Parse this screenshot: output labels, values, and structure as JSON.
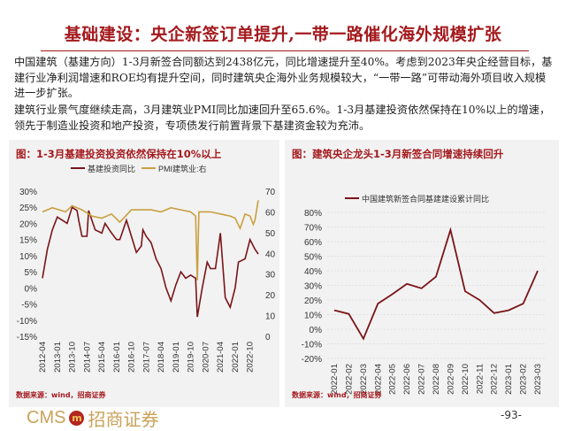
{
  "slide": {
    "title": "基础建设：央企新签订单提升,一带一路催化海外规模扩张",
    "paragraph1": "中国建筑（基建方向）1-3月新签合同额达到2438亿元，同比增速提升至40%。考虑到2023年央企经营目标，基建行业净利润增速和ROE均有提升空间，同时建筑央企海外业务规模较大，“一带一路”可带动海外项目收入规模进一步扩张。",
    "paragraph2": "建筑行业景气度继续走高，3月建筑业PMI同比加速回升至65.6%。1-3月基建投资依然保持在10%以上的增速，领先于制造业投资和地产投资，专项债发行前置背景下基建资金较为充沛。",
    "page_number": "-93-",
    "logo_text": "CMS",
    "logo_cn": "招商证券",
    "accent_color": "#a4191d"
  },
  "chart_data": [
    {
      "type": "line",
      "title": "图：1-3月基建投资投资依然保持在10%以上",
      "source": "数据来源：wind，招商证券",
      "legend_position": "top",
      "grid": false,
      "x_ticks": [
        "2012-04",
        "2013-01",
        "2013-10",
        "2014-07",
        "2015-04",
        "2016-01",
        "2016-10",
        "2017-07",
        "2018-04",
        "2019-01",
        "2019-10",
        "2020-07",
        "2021-04",
        "2022-01",
        "2022-10"
      ],
      "y_left": {
        "ticks": [
          "30%",
          "25%",
          "20%",
          "15%",
          "10%",
          "5%",
          "0%",
          "-5%",
          "-10%",
          "-15%"
        ],
        "range": [
          -15,
          30
        ]
      },
      "y_right": {
        "ticks": [
          "70",
          "60",
          "50",
          "40",
          "30",
          "20",
          "10",
          "0"
        ],
        "range": [
          0,
          70
        ]
      },
      "series": [
        {
          "name": "基建投资同比",
          "axis": "left",
          "color": "#7a1418",
          "points": [
            [
              "2012-04",
              3
            ],
            [
              "2012-07",
              12
            ],
            [
              "2012-10",
              18
            ],
            [
              "2013-01",
              22
            ],
            [
              "2013-04",
              21
            ],
            [
              "2013-07",
              20
            ],
            [
              "2013-10",
              25
            ],
            [
              "2014-01",
              24
            ],
            [
              "2014-02",
              21
            ],
            [
              "2014-04",
              16
            ],
            [
              "2014-07",
              16
            ],
            [
              "2014-08",
              24
            ],
            [
              "2014-12",
              18
            ],
            [
              "2015-04",
              17
            ],
            [
              "2015-06",
              20
            ],
            [
              "2015-10",
              17
            ],
            [
              "2016-01",
              15
            ],
            [
              "2016-03",
              15
            ],
            [
              "2016-07",
              21
            ],
            [
              "2016-10",
              16
            ],
            [
              "2017-01",
              11
            ],
            [
              "2017-04",
              13
            ],
            [
              "2017-05",
              18
            ],
            [
              "2017-07",
              16
            ],
            [
              "2017-10",
              14
            ],
            [
              "2018-01",
              9
            ],
            [
              "2018-04",
              6
            ],
            [
              "2018-07",
              0
            ],
            [
              "2018-10",
              -4
            ],
            [
              "2019-01",
              1
            ],
            [
              "2019-04",
              5
            ],
            [
              "2019-07",
              3
            ],
            [
              "2019-10",
              4
            ],
            [
              "2020-01",
              3
            ],
            [
              "2020-02",
              -9
            ],
            [
              "2020-05",
              0
            ],
            [
              "2020-08",
              8
            ],
            [
              "2020-10",
              6
            ],
            [
              "2021-01",
              6
            ],
            [
              "2021-04",
              17
            ],
            [
              "2021-07",
              -3
            ],
            [
              "2021-10",
              -6
            ],
            [
              "2022-01",
              0
            ],
            [
              "2022-03",
              8
            ],
            [
              "2022-07",
              9
            ],
            [
              "2022-10",
              15
            ],
            [
              "2023-01",
              12
            ],
            [
              "2023-03",
              10.5
            ]
          ]
        },
        {
          "name": "PMI建筑业:右",
          "axis": "right",
          "color": "#c9a040",
          "points": [
            [
              "2012-04",
              60
            ],
            [
              "2012-10",
              62
            ],
            [
              "2013-06",
              60
            ],
            [
              "2013-10",
              63
            ],
            [
              "2014-04",
              61
            ],
            [
              "2014-10",
              58
            ],
            [
              "2015-04",
              57
            ],
            [
              "2015-10",
              59
            ],
            [
              "2016-03",
              55
            ],
            [
              "2016-10",
              61
            ],
            [
              "2017-04",
              61
            ],
            [
              "2017-10",
              61
            ],
            [
              "2018-04",
              60
            ],
            [
              "2018-10",
              62
            ],
            [
              "2019-04",
              61
            ],
            [
              "2019-10",
              60
            ],
            [
              "2020-01",
              58
            ],
            [
              "2020-02",
              27
            ],
            [
              "2020-03",
              60
            ],
            [
              "2020-10",
              60
            ],
            [
              "2021-04",
              59
            ],
            [
              "2021-10",
              58
            ],
            [
              "2022-01",
              57
            ],
            [
              "2022-04",
              52
            ],
            [
              "2022-07",
              59
            ],
            [
              "2022-10",
              58
            ],
            [
              "2022-12",
              54
            ],
            [
              "2023-01",
              56
            ],
            [
              "2023-03",
              65.6
            ]
          ]
        }
      ]
    },
    {
      "type": "line",
      "title": "图：建筑央企龙头1-3月新签合同增速持续回升",
      "source": "数据来源：wind，招商证券",
      "legend_position": "top",
      "grid": true,
      "categories": [
        "2022-01",
        "2022-02",
        "2022-03",
        "2022-04",
        "2022-05",
        "2022-06",
        "2022-07",
        "2022-08",
        "2022-09",
        "2022-10",
        "2022-11",
        "2022-12",
        "2023-01",
        "2023-02",
        "2023-03"
      ],
      "y_ticks": [
        "80%",
        "70%",
        "60%",
        "50%",
        "40%",
        "30%",
        "20%",
        "10%",
        "0%",
        "-10%",
        "-20%"
      ],
      "ylim": [
        -20,
        80
      ],
      "series": [
        {
          "name": "中国建筑新签合同基建建设累计同比",
          "color": "#7a1418",
          "values": [
            13,
            10.5,
            -6.5,
            17.5,
            24,
            31,
            28,
            36,
            68,
            26,
            20,
            11,
            13,
            17.5,
            40
          ]
        }
      ]
    }
  ]
}
